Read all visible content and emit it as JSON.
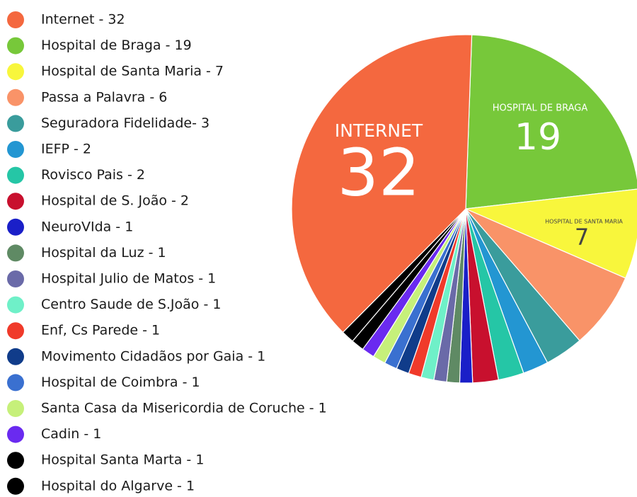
{
  "chart_data": {
    "type": "pie",
    "categories": [
      "Internet - 32",
      "Hospital de Braga - 19",
      "Hospital de Santa Maria - 7",
      "Passa a Palavra - 6",
      "Seguradora Fidelidade- 3",
      "IEFP - 2",
      "Rovisco Pais - 2",
      "Hospital de S. João - 2",
      "NeuroVIda - 1",
      "Hospital da Luz - 1",
      "Hospital Julio de Matos - 1",
      "Centro Saude de S.João - 1",
      "Enf, Cs Parede - 1",
      "Movimento Cidadãos por Gaia - 1",
      "Hospital de Coimbra - 1",
      "Santa Casa da Misericordia de Coruche - 1",
      "Cadin - 1",
      "Hospital Santa Marta - 1",
      "Hospital do Algarve - 1"
    ],
    "values": [
      32,
      19,
      7,
      6,
      3,
      2,
      2,
      2,
      1,
      1,
      1,
      1,
      1,
      1,
      1,
      1,
      1,
      1,
      1
    ],
    "colors": [
      "#f4683f",
      "#77c83a",
      "#f8f63c",
      "#f99368",
      "#3a9c9c",
      "#2396d2",
      "#25c6a6",
      "#c8102e",
      "#1a1fc8",
      "#5f8a64",
      "#6a6aa8",
      "#6ff0c8",
      "#f03a2a",
      "#103c8a",
      "#3a70d0",
      "#c6f07a",
      "#6a2af0",
      "#000000",
      "#000000"
    ],
    "annotations": [
      "INTERNET",
      "HOSPITAL DE BRAGA",
      "HOSPITAL DE SANTA MARIA"
    ]
  }
}
